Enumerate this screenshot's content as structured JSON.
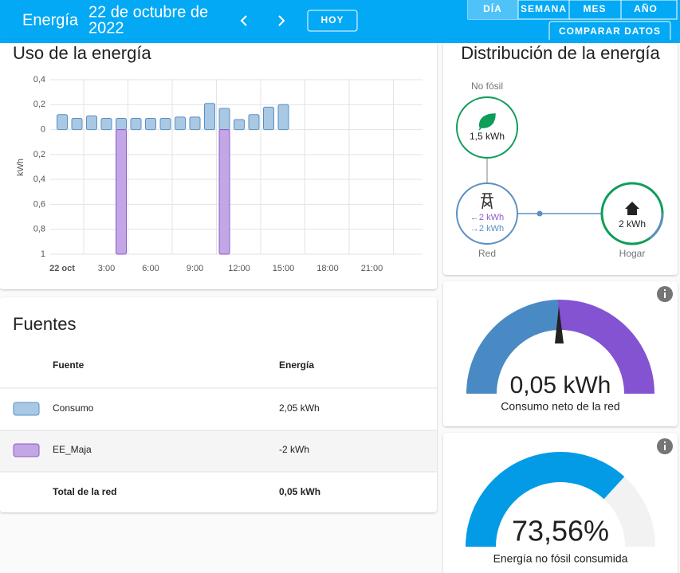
{
  "header": {
    "title": "Energía",
    "date": [
      "22 de octubre de",
      "2022"
    ],
    "today_button": "HOY",
    "tabs": [
      "DÍA",
      "SEMANA",
      "MES",
      "AÑO"
    ],
    "compare_button": "COMPARAR DATOS"
  },
  "usage_card": {
    "title": "Uso de la energía",
    "chart_data": {
      "type": "bar",
      "ylabel": "kWh",
      "xlim": [
        0,
        24
      ],
      "xticks": [
        {
          "value": 0,
          "label": "22 oct"
        },
        {
          "value": 3,
          "label": "3:00"
        },
        {
          "value": 6,
          "label": "6:00"
        },
        {
          "value": 9,
          "label": "9:00"
        },
        {
          "value": 12,
          "label": "12:00"
        },
        {
          "value": 15,
          "label": "15:00"
        },
        {
          "value": 18,
          "label": "18:00"
        },
        {
          "value": 21,
          "label": "21:00"
        }
      ],
      "ylim": [
        -1,
        0.4
      ],
      "yticks": [
        {
          "value": 0.4,
          "label": "0,4"
        },
        {
          "value": 0.2,
          "label": "0,2"
        },
        0,
        {
          "value": -0.2,
          "label": "0,2"
        },
        {
          "value": -0.4,
          "label": "0,4"
        },
        {
          "value": -0.6,
          "label": "0,6"
        },
        {
          "value": -0.8,
          "label": "0,8"
        },
        {
          "value": -1,
          "label": "1"
        }
      ],
      "x": [
        0,
        1,
        2,
        3,
        4,
        5,
        6,
        7,
        8,
        9,
        10,
        11,
        12,
        13,
        14,
        15,
        16,
        17,
        18,
        19,
        20,
        21,
        22,
        23
      ],
      "series": [
        {
          "name": "Consumo",
          "color": "#a8c8e4",
          "stroke": "#5b8fc2",
          "values": [
            0.12,
            0.09,
            0.11,
            0.09,
            0.09,
            0.09,
            0.09,
            0.09,
            0.1,
            0.1,
            0.21,
            0.17,
            0.08,
            0.12,
            0.18,
            0.2,
            null,
            null,
            null,
            null,
            null,
            null,
            null,
            null
          ]
        },
        {
          "name": "EE_Maja",
          "color": "#c3a6e6",
          "stroke": "#8a5cc8",
          "values": [
            null,
            null,
            null,
            null,
            -1,
            null,
            null,
            null,
            null,
            null,
            null,
            -1,
            null,
            null,
            null,
            null,
            null,
            null,
            null,
            null,
            null,
            null,
            null,
            null
          ]
        }
      ],
      "grid": true
    }
  },
  "sources_card": {
    "title": "Fuentes",
    "columns": [
      "Fuente",
      "Energía"
    ],
    "rows": [
      [
        "Consumo",
        "2,05 kWh"
      ],
      [
        "EE_Maja",
        "-2 kWh"
      ]
    ],
    "total": [
      "Total de la red",
      "0,05 kWh"
    ]
  },
  "distribution_card": {
    "title": "Distribución de la energía",
    "non_fossil": {
      "label": "No fósil",
      "value": "1,5 kWh"
    },
    "grid": {
      "label": "Red",
      "from": "←2 kWh",
      "to": "→2 kWh"
    },
    "home": {
      "label": "Hogar",
      "value": "2 kWh"
    }
  },
  "net_gauge": {
    "value": "0,05 kWh",
    "label": "Consumo neto de la red"
  },
  "fossil_gauge": {
    "value": 73.56,
    "value_label": "73,56%",
    "range": [
      0,
      100
    ],
    "label": "Energía no fósil consumida"
  }
}
